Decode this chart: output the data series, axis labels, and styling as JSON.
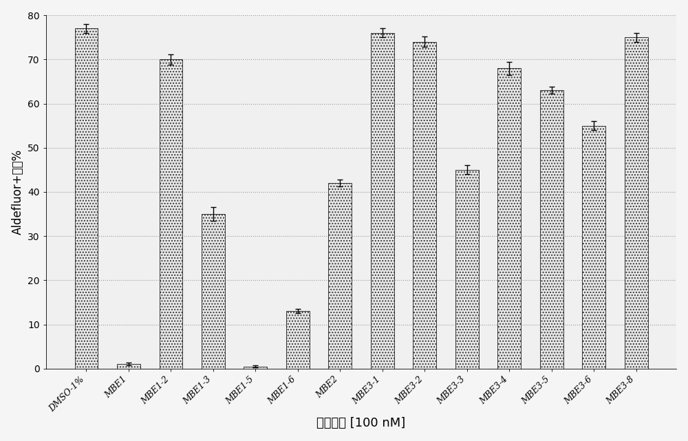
{
  "categories": [
    "DMSO-1%",
    "MBE1",
    "MBE1-2",
    "MBE1-3",
    "MBE1-5",
    "MBE1-6",
    "MBE2",
    "MBE3-1",
    "MBE3-2",
    "MBE3-3",
    "MBE3-4",
    "MBE3-5",
    "MBE3-6",
    "MBE3-8"
  ],
  "values": [
    77,
    1.0,
    70,
    35,
    0.5,
    13,
    42,
    76,
    74,
    45,
    68,
    63,
    55,
    75
  ],
  "errors": [
    1.0,
    0.3,
    1.2,
    1.5,
    0.2,
    0.5,
    0.8,
    1.0,
    1.2,
    1.0,
    1.5,
    0.8,
    1.0,
    1.0
  ],
  "ylabel": "Aldefluor+细胞%",
  "xlabel": "引导名称 [100 nM]",
  "ylim": [
    0,
    80
  ],
  "yticks": [
    0,
    10,
    20,
    30,
    40,
    50,
    60,
    70,
    80
  ],
  "bar_color": "#e8e8e8",
  "bar_hatch": "....",
  "bar_edgecolor": "#333333",
  "background_color": "#f5f5f5",
  "plot_bg_color": "#f0f0f0",
  "ylabel_fontsize": 12,
  "xlabel_fontsize": 13,
  "tick_fontsize": 10,
  "xtick_fontsize": 9
}
